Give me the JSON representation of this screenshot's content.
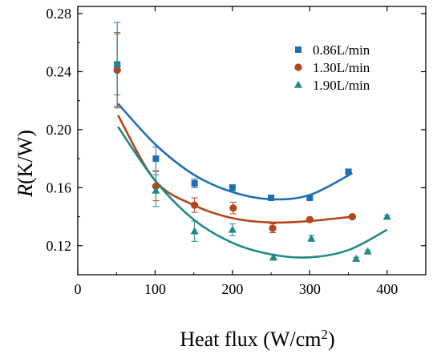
{
  "chart_data": {
    "type": "scatter",
    "xlabel_main": "Heat flux (W/cm",
    "xlabel_sup": "2",
    "xlabel_close": ")",
    "ylabel_italic": "R",
    "ylabel_rest": "(K/W)",
    "xlim": [
      0,
      450
    ],
    "ylim": [
      0.1,
      0.285
    ],
    "x_ticks": [
      0,
      100,
      200,
      300,
      400
    ],
    "x_tick_labels": [
      "0",
      "100",
      "200",
      "300",
      "400"
    ],
    "y_ticks": [
      0.12,
      0.16,
      0.2,
      0.24,
      0.28
    ],
    "y_tick_labels": [
      "0.12",
      "0.16",
      "0.20",
      "0.24",
      "0.28"
    ],
    "legend_position": "top-right",
    "series": [
      {
        "name": "0.86L/min",
        "marker": "square",
        "color": "#1f6fb5",
        "points": [
          {
            "x": 51,
            "y": 0.245,
            "err": 0.029
          },
          {
            "x": 101,
            "y": 0.18,
            "err": 0.008
          },
          {
            "x": 151,
            "y": 0.163,
            "err": 0.003
          },
          {
            "x": 200,
            "y": 0.16,
            "err": 0.002
          },
          {
            "x": 250,
            "y": 0.153,
            "err": 0.001
          },
          {
            "x": 300,
            "y": 0.153,
            "err": 0.001
          },
          {
            "x": 350,
            "y": 0.171,
            "err": 0.001
          }
        ],
        "fit": {
          "x_start": 52,
          "x_end": 355,
          "points": [
            [
              52,
              0.218
            ],
            [
              100,
              0.19
            ],
            [
              150,
              0.169
            ],
            [
              200,
              0.157
            ],
            [
              250,
              0.152
            ],
            [
              300,
              0.155
            ],
            [
              355,
              0.17
            ]
          ]
        }
      },
      {
        "name": "1.30L/min",
        "marker": "circle",
        "color": "#b5451b",
        "points": [
          {
            "x": 51,
            "y": 0.241,
            "err": 0.026
          },
          {
            "x": 101,
            "y": 0.161,
            "err": 0.01
          },
          {
            "x": 151,
            "y": 0.148,
            "err": 0.005
          },
          {
            "x": 201,
            "y": 0.146,
            "err": 0.004
          },
          {
            "x": 252,
            "y": 0.132,
            "err": 0.003
          },
          {
            "x": 300,
            "y": 0.138,
            "err": 0.001
          },
          {
            "x": 355,
            "y": 0.14,
            "err": 0.001
          }
        ],
        "fit": {
          "x_start": 52,
          "x_end": 355,
          "points": [
            [
              52,
              0.21
            ],
            [
              100,
              0.165
            ],
            [
              150,
              0.148
            ],
            [
              200,
              0.139
            ],
            [
              250,
              0.136
            ],
            [
              300,
              0.137
            ],
            [
              355,
              0.14
            ]
          ]
        }
      },
      {
        "name": "1.90L/min",
        "marker": "triangle",
        "color": "#1f8a86",
        "points": [
          {
            "x": 51,
            "y": 0.245,
            "err": 0.021
          },
          {
            "x": 101,
            "y": 0.158,
            "err": 0.011
          },
          {
            "x": 151,
            "y": 0.13,
            "err": 0.007
          },
          {
            "x": 200,
            "y": 0.131,
            "err": 0.004
          },
          {
            "x": 253,
            "y": 0.112,
            "err": 0.002
          },
          {
            "x": 302,
            "y": 0.125,
            "err": 0.002
          },
          {
            "x": 360,
            "y": 0.111,
            "err": 0.001
          },
          {
            "x": 375,
            "y": 0.116,
            "err": 0.001
          },
          {
            "x": 400,
            "y": 0.14,
            "err": 0.001
          }
        ],
        "fit": {
          "x_start": 52,
          "x_end": 400,
          "points": [
            [
              52,
              0.202
            ],
            [
              100,
              0.165
            ],
            [
              150,
              0.138
            ],
            [
              200,
              0.122
            ],
            [
              250,
              0.114
            ],
            [
              300,
              0.112
            ],
            [
              350,
              0.117
            ],
            [
              400,
              0.131
            ]
          ]
        }
      }
    ]
  }
}
